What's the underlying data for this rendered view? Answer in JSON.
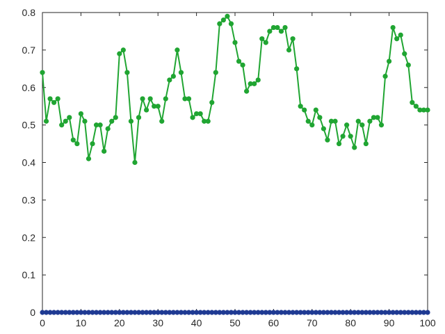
{
  "chart_data": {
    "type": "line",
    "xlim": [
      0,
      100
    ],
    "ylim": [
      0,
      0.8
    ],
    "xticks": [
      "0",
      "10",
      "20",
      "30",
      "40",
      "50",
      "60",
      "70",
      "80",
      "90",
      "100"
    ],
    "yticks": [
      "0",
      "0.1",
      "0.2",
      "0.3",
      "0.4",
      "0.5",
      "0.6",
      "0.7",
      "0.8"
    ],
    "grid": false,
    "legend": "none",
    "series": [
      {
        "color": "#20a532",
        "marker": "circle",
        "x": [
          0,
          1,
          2,
          3,
          4,
          5,
          6,
          7,
          8,
          9,
          10,
          11,
          12,
          13,
          14,
          15,
          16,
          17,
          18,
          19,
          20,
          21,
          22,
          23,
          24,
          25,
          26,
          27,
          28,
          29,
          30,
          31,
          32,
          33,
          34,
          35,
          36,
          37,
          38,
          39,
          40,
          41,
          42,
          43,
          44,
          45,
          46,
          47,
          48,
          49,
          50,
          51,
          52,
          53,
          54,
          55,
          56,
          57,
          58,
          59,
          60,
          61,
          62,
          63,
          64,
          65,
          66,
          67,
          68,
          69,
          70,
          71,
          72,
          73,
          74,
          75,
          76,
          77,
          78,
          79,
          80,
          81,
          82,
          83,
          84,
          85,
          86,
          87,
          88,
          89,
          90,
          91,
          92,
          93,
          94,
          95,
          96,
          97,
          98,
          99,
          100
        ],
        "y": [
          0.64,
          0.51,
          0.57,
          0.56,
          0.57,
          0.5,
          0.51,
          0.52,
          0.46,
          0.45,
          0.53,
          0.51,
          0.41,
          0.45,
          0.5,
          0.5,
          0.43,
          0.49,
          0.51,
          0.52,
          0.69,
          0.7,
          0.64,
          0.51,
          0.4,
          0.52,
          0.57,
          0.54,
          0.57,
          0.55,
          0.55,
          0.51,
          0.57,
          0.62,
          0.63,
          0.7,
          0.64,
          0.57,
          0.57,
          0.52,
          0.53,
          0.53,
          0.51,
          0.51,
          0.56,
          0.64,
          0.77,
          0.78,
          0.79,
          0.77,
          0.72,
          0.67,
          0.66,
          0.59,
          0.61,
          0.61,
          0.62,
          0.73,
          0.72,
          0.75,
          0.76,
          0.76,
          0.75,
          0.76,
          0.7,
          0.73,
          0.65,
          0.55,
          0.54,
          0.51,
          0.5,
          0.54,
          0.52,
          0.49,
          0.46,
          0.51,
          0.51,
          0.45,
          0.47,
          0.5,
          0.47,
          0.44,
          0.51,
          0.5,
          0.45,
          0.51,
          0.52,
          0.52,
          0.5,
          0.63,
          0.67,
          0.76,
          0.73,
          0.74,
          0.69,
          0.66,
          0.56,
          0.55,
          0.54,
          0.54,
          0.54
        ]
      },
      {
        "color": "#1f3a93",
        "marker": "circle",
        "x": [
          0,
          1,
          2,
          3,
          4,
          5,
          6,
          7,
          8,
          9,
          10,
          11,
          12,
          13,
          14,
          15,
          16,
          17,
          18,
          19,
          20,
          21,
          22,
          23,
          24,
          25,
          26,
          27,
          28,
          29,
          30,
          31,
          32,
          33,
          34,
          35,
          36,
          37,
          38,
          39,
          40,
          41,
          42,
          43,
          44,
          45,
          46,
          47,
          48,
          49,
          50,
          51,
          52,
          53,
          54,
          55,
          56,
          57,
          58,
          59,
          60,
          61,
          62,
          63,
          64,
          65,
          66,
          67,
          68,
          69,
          70,
          71,
          72,
          73,
          74,
          75,
          76,
          77,
          78,
          79,
          80,
          81,
          82,
          83,
          84,
          85,
          86,
          87,
          88,
          89,
          90,
          91,
          92,
          93,
          94,
          95,
          96,
          97,
          98,
          99,
          100
        ],
        "y": [
          0,
          0,
          0,
          0,
          0,
          0,
          0,
          0,
          0,
          0,
          0,
          0,
          0,
          0,
          0,
          0,
          0,
          0,
          0,
          0,
          0,
          0,
          0,
          0,
          0,
          0,
          0,
          0,
          0,
          0,
          0,
          0,
          0,
          0,
          0,
          0,
          0,
          0,
          0,
          0,
          0,
          0,
          0,
          0,
          0,
          0,
          0,
          0,
          0,
          0,
          0,
          0,
          0,
          0,
          0,
          0,
          0,
          0,
          0,
          0,
          0,
          0,
          0,
          0,
          0,
          0,
          0,
          0,
          0,
          0,
          0,
          0,
          0,
          0,
          0,
          0,
          0,
          0,
          0,
          0,
          0,
          0,
          0,
          0,
          0,
          0,
          0,
          0,
          0,
          0,
          0,
          0,
          0,
          0,
          0,
          0,
          0,
          0,
          0,
          0,
          0
        ]
      }
    ]
  }
}
